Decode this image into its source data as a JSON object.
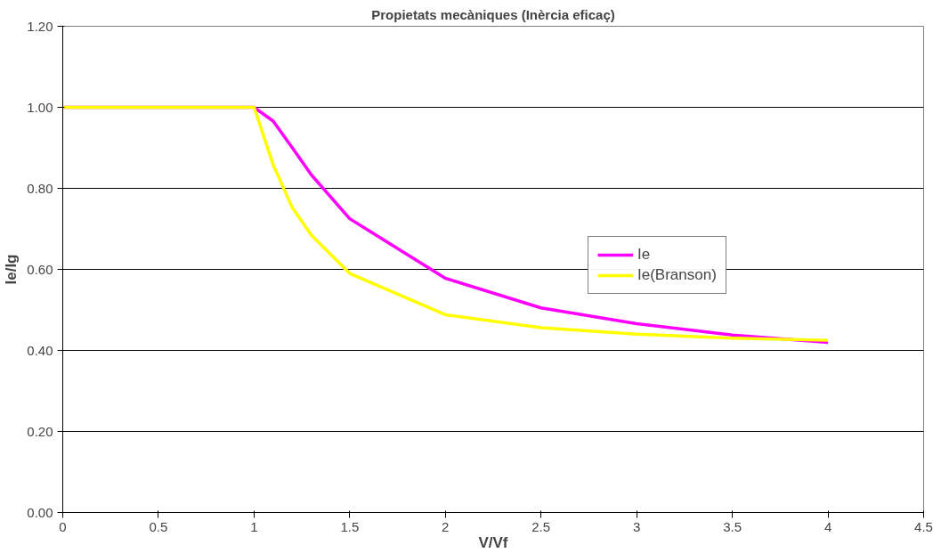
{
  "chart_data": {
    "type": "line",
    "title": "Propietats mecàniques (Inèrcia eficaç)",
    "xlabel": "V/Vf",
    "ylabel": "Ie/Ig",
    "x": [
      0,
      1,
      1.1,
      1.2,
      1.3,
      1.5,
      2,
      2.5,
      3,
      3.5,
      4
    ],
    "series": [
      {
        "name": "Ie",
        "color": "#ff00ff",
        "values": [
          1.0,
          1.0,
          0.966,
          0.9,
          0.833,
          0.725,
          0.578,
          0.505,
          0.466,
          0.438,
          0.42
        ]
      },
      {
        "name": "Ie(Branson)",
        "color": "#ffff00",
        "values": [
          1.0,
          1.0,
          0.858,
          0.752,
          0.684,
          0.59,
          0.488,
          0.456,
          0.44,
          0.43,
          0.425
        ]
      }
    ],
    "xlim": [
      0,
      4.5
    ],
    "xticks": [
      0,
      0.5,
      1,
      1.5,
      2,
      2.5,
      3,
      3.5,
      4,
      4.5
    ],
    "ylim": [
      0,
      1.2
    ],
    "yticks": [
      {
        "value": 0,
        "label": "0.00"
      },
      {
        "value": 0.2,
        "label": "0.20"
      },
      {
        "value": 0.4,
        "label": "0.40"
      },
      {
        "value": 0.6,
        "label": "0.60"
      },
      {
        "value": 0.8,
        "label": "0.80"
      },
      {
        "value": 1.0,
        "label": "1.00"
      },
      {
        "value": 1.2,
        "label": "1.20"
      }
    ],
    "grid": "y",
    "legend": "right",
    "marker": "none",
    "line_style": "solid"
  }
}
